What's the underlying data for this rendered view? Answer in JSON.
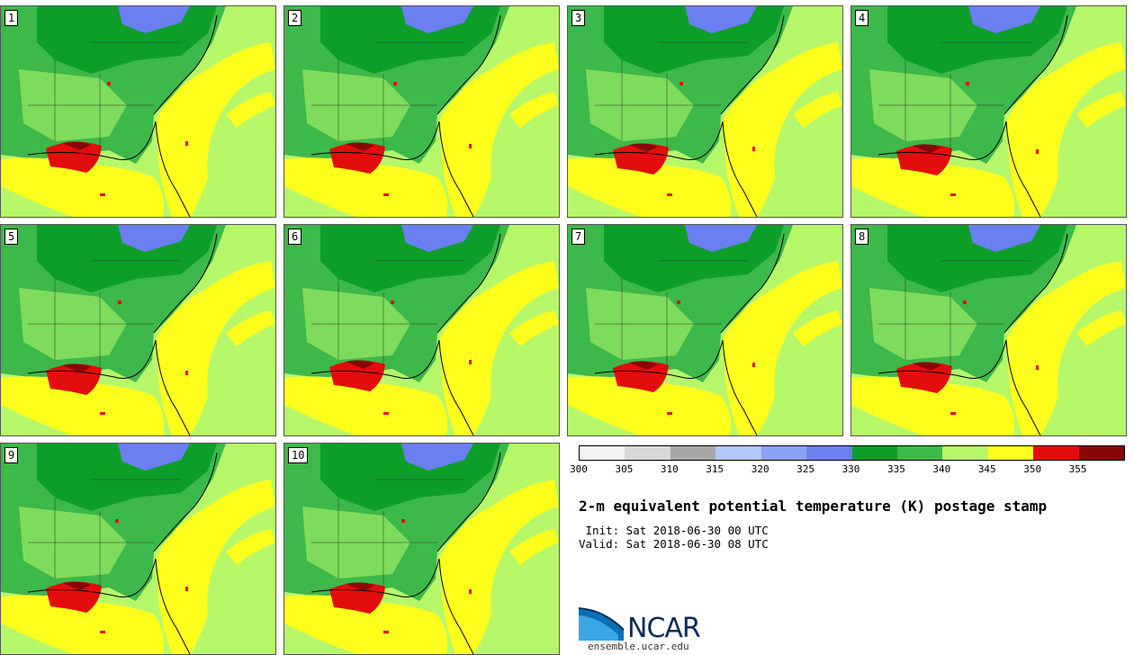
{
  "stamps": [
    {
      "label": "1"
    },
    {
      "label": "2"
    },
    {
      "label": "3"
    },
    {
      "label": "4"
    },
    {
      "label": "5"
    },
    {
      "label": "6"
    },
    {
      "label": "7"
    },
    {
      "label": "8"
    },
    {
      "label": "9"
    },
    {
      "label": "10"
    }
  ],
  "colorbar": {
    "ticks": [
      "300",
      "305",
      "310",
      "315",
      "320",
      "325",
      "330",
      "335",
      "340",
      "345",
      "350",
      "355"
    ],
    "colors": [
      "#f2f2f2",
      "#d8d8d8",
      "#a8a8a8",
      "#b3c8fb",
      "#8aa2f6",
      "#6c7ff1",
      "#0d9e2a",
      "#3db84a",
      "#b6f76a",
      "#ffff1e",
      "#e30d0d",
      "#8a0707"
    ]
  },
  "title": "2-m equivalent potential temperature (K) postage stamp",
  "init": " Init: Sat 2018-06-30 00 UTC",
  "valid": "Valid: Sat 2018-06-30 08 UTC",
  "logo": {
    "text": "NCAR",
    "site": "ensemble.ucar.edu"
  },
  "colors": {
    "ocean_gulf": "#b6f76a",
    "land_green": "#3db84a",
    "dark_green": "#0d9e2a",
    "yellow": "#ffff1e",
    "red": "#e30d0d",
    "darkred": "#8a0707",
    "blue": "#6c7ff1"
  }
}
